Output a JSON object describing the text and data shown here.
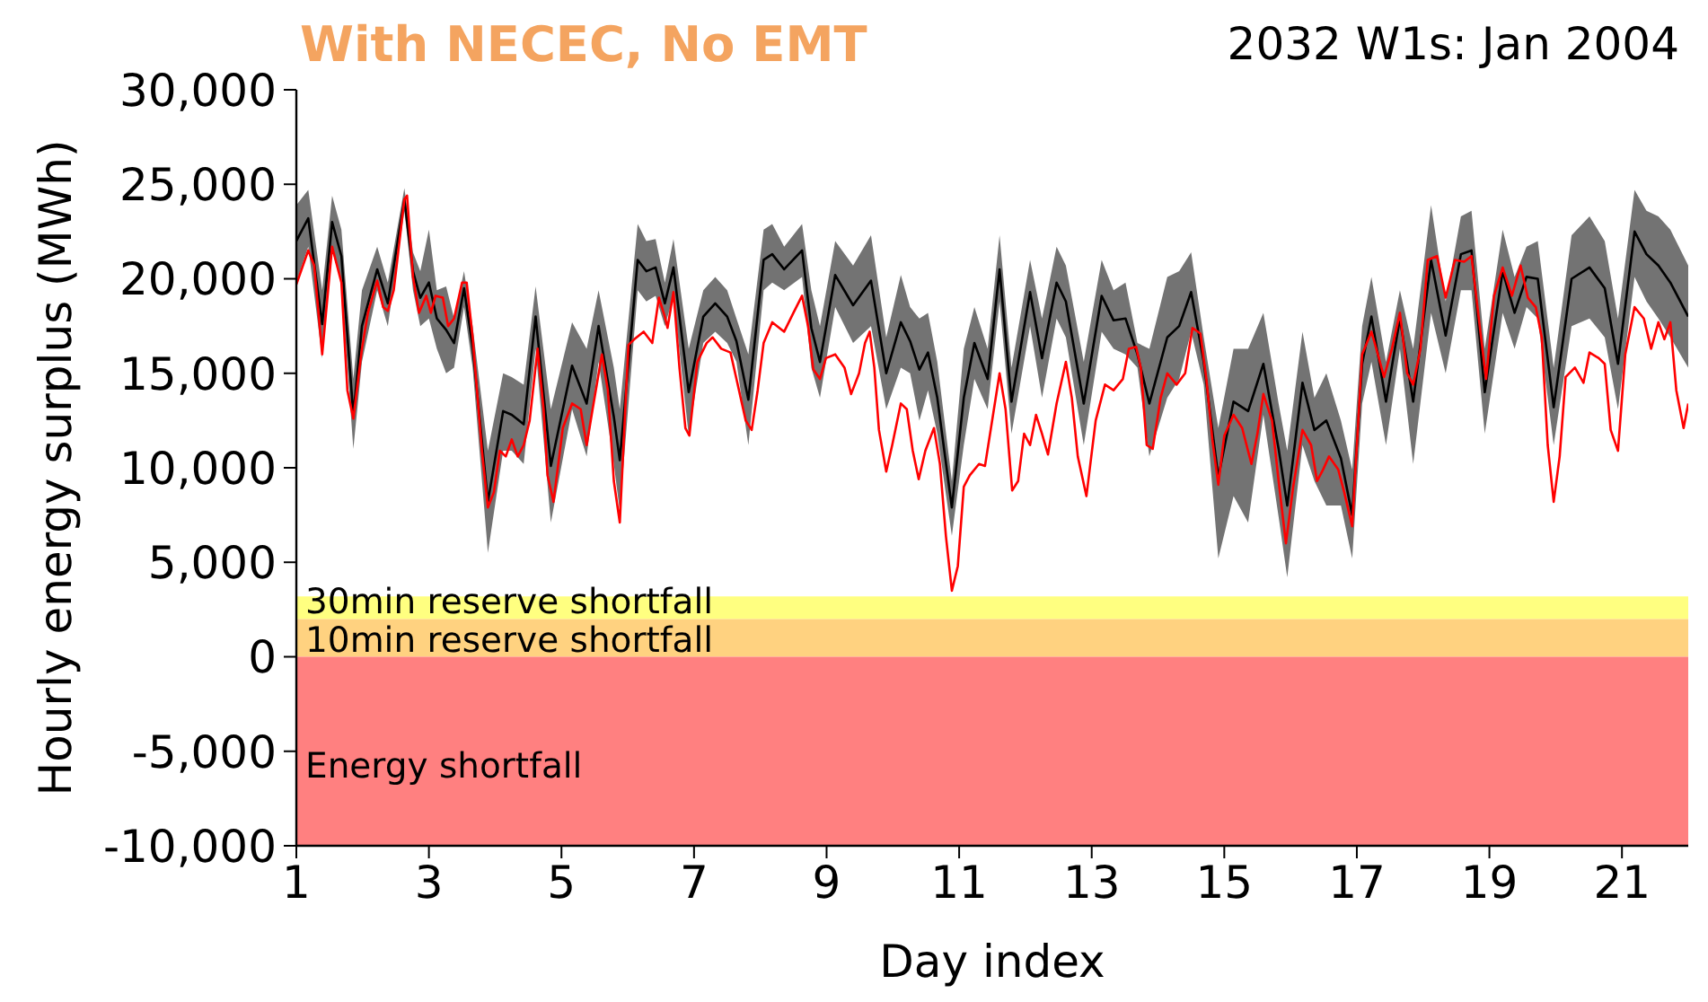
{
  "chart_data": {
    "type": "line",
    "title": "With NECEC, No EMT",
    "subtitle": "2032 W1s: Jan 2004",
    "xlabel": "Day index",
    "ylabel": "Hourly energy surplus (MWh)",
    "xlim": [
      1,
      22
    ],
    "xticks": [
      1,
      3,
      5,
      7,
      9,
      11,
      13,
      15,
      17,
      19,
      21
    ],
    "ylim": [
      -10000,
      30000
    ],
    "yticks": [
      {
        "value": -10000,
        "label": "-10,000"
      },
      {
        "value": -5000,
        "label": "-5,000"
      },
      {
        "value": 0,
        "label": "0"
      },
      {
        "value": 5000,
        "label": "5,000"
      },
      {
        "value": 10000,
        "label": "10,000"
      },
      {
        "value": 15000,
        "label": "15,000"
      },
      {
        "value": 20000,
        "label": "20,000"
      },
      {
        "value": 25000,
        "label": "25,000"
      },
      {
        "value": 30000,
        "label": "30,000"
      }
    ],
    "bands": [
      {
        "axis": "y",
        "from": 2000,
        "to": 3200,
        "label": "30min reserve shortfall",
        "color": "#ffff80"
      },
      {
        "axis": "y",
        "from": 0,
        "to": 2000,
        "label": "10min reserve shortfall",
        "color": "#ffd280"
      },
      {
        "axis": "y",
        "from": -10000,
        "to": 0,
        "label": "Energy shortfall",
        "color": "#ff8080"
      }
    ],
    "series": [
      {
        "color": "#000000",
        "x": [
          1.0,
          1.18,
          1.39,
          1.54,
          1.68,
          1.86,
          1.99,
          2.22,
          2.38,
          2.63,
          2.76,
          2.87,
          3.0,
          3.12,
          3.26,
          3.38,
          3.53,
          3.66,
          3.89,
          4.12,
          4.25,
          4.43,
          4.61,
          4.84,
          5.16,
          5.38,
          5.56,
          5.79,
          5.88,
          6.15,
          6.28,
          6.42,
          6.56,
          6.69,
          6.92,
          7.14,
          7.32,
          7.5,
          7.64,
          7.82,
          8.05,
          8.18,
          8.36,
          8.63,
          8.77,
          8.9,
          9.13,
          9.4,
          9.67,
          9.9,
          10.12,
          10.26,
          10.4,
          10.53,
          10.67,
          10.89,
          11.07,
          11.23,
          11.43,
          11.61,
          11.79,
          12.07,
          12.25,
          12.47,
          12.61,
          12.88,
          13.15,
          13.33,
          13.51,
          13.69,
          13.87,
          14.14,
          14.32,
          14.5,
          14.69,
          14.91,
          15.14,
          15.36,
          15.59,
          15.82,
          15.95,
          16.18,
          16.36,
          16.54,
          16.76,
          16.93,
          17.08,
          17.22,
          17.44,
          17.65,
          17.85,
          18.12,
          18.34,
          18.57,
          18.73,
          18.93,
          19.2,
          19.38,
          19.56,
          19.73,
          19.97,
          20.24,
          20.51,
          20.74,
          20.94,
          21.19,
          21.37,
          21.55,
          21.73,
          22.0
        ],
        "values": [
          22000,
          23200,
          17600,
          23000,
          21200,
          12800,
          17500,
          20500,
          18700,
          24200,
          20400,
          19000,
          19800,
          17900,
          17300,
          16600,
          19500,
          16400,
          8200,
          13000,
          12800,
          12300,
          18000,
          10100,
          15400,
          13400,
          17500,
          12700,
          10400,
          21000,
          20400,
          20600,
          18700,
          20600,
          14000,
          18000,
          18700,
          18000,
          16700,
          13600,
          21000,
          21300,
          20500,
          21500,
          17400,
          15600,
          20200,
          18600,
          19900,
          15000,
          17700,
          16700,
          15200,
          16100,
          13700,
          7900,
          13700,
          16600,
          14700,
          20500,
          13500,
          19300,
          15800,
          19800,
          18800,
          13400,
          19100,
          17800,
          17900,
          16000,
          13400,
          16900,
          17500,
          19300,
          15600,
          9500,
          13500,
          13000,
          15500,
          11000,
          8000,
          14500,
          12000,
          12500,
          10500,
          7500,
          15500,
          18000,
          13500,
          17900,
          13500,
          21000,
          17000,
          21300,
          21500,
          14000,
          20400,
          18200,
          20100,
          20000,
          13200,
          20000,
          20600,
          19500,
          15500,
          22500,
          21300,
          20700,
          19800,
          18000
        ],
        "lower": [
          19800,
          21700,
          15800,
          21500,
          19800,
          11000,
          15600,
          19400,
          17500,
          23600,
          19400,
          17500,
          17900,
          16300,
          15000,
          15300,
          18500,
          15300,
          5500,
          10900,
          10900,
          10200,
          16300,
          7100,
          13100,
          10600,
          15600,
          10200,
          7700,
          19400,
          18800,
          19100,
          17500,
          19100,
          11700,
          16600,
          17200,
          16600,
          15600,
          11200,
          19400,
          19800,
          19400,
          20100,
          15300,
          13700,
          18500,
          16600,
          17500,
          13100,
          15300,
          15000,
          12500,
          14100,
          11800,
          6400,
          11200,
          14700,
          13100,
          18800,
          11800,
          17500,
          13700,
          17900,
          16900,
          11200,
          17200,
          16300,
          16000,
          15300,
          10600,
          13700,
          14700,
          17200,
          14400,
          5200,
          8500,
          7100,
          12800,
          7400,
          4200,
          11200,
          9300,
          8000,
          8000,
          5200,
          13400,
          15600,
          11200,
          16300,
          10200,
          18200,
          15000,
          19400,
          19400,
          11800,
          18200,
          16300,
          18500,
          17900,
          11200,
          17500,
          17900,
          16900,
          13100,
          20100,
          18800,
          17900,
          16900,
          15300
        ],
        "upper": [
          23900,
          24700,
          19400,
          24400,
          22600,
          14700,
          19400,
          21700,
          19800,
          24800,
          21400,
          20400,
          22600,
          19400,
          19600,
          17900,
          20400,
          17500,
          10900,
          15000,
          14800,
          14400,
          19600,
          13100,
          17700,
          16300,
          19400,
          15300,
          13100,
          22900,
          22000,
          22100,
          19800,
          22100,
          16300,
          19400,
          20100,
          19400,
          17900,
          16000,
          22600,
          22900,
          21700,
          22900,
          19400,
          17500,
          22000,
          20700,
          22300,
          16900,
          20200,
          18500,
          17900,
          18200,
          15600,
          9300,
          16300,
          18500,
          16300,
          22300,
          15300,
          21000,
          17900,
          21700,
          20700,
          15600,
          21000,
          19400,
          19800,
          16600,
          16300,
          20100,
          20400,
          21400,
          16900,
          12100,
          16300,
          16300,
          18200,
          13400,
          10900,
          17200,
          13700,
          15000,
          12500,
          9900,
          17500,
          20100,
          15600,
          19400,
          16300,
          23900,
          18800,
          23300,
          23600,
          16300,
          22600,
          20100,
          21700,
          22000,
          15300,
          22300,
          23300,
          22000,
          17900,
          24700,
          23600,
          23300,
          22600,
          20700
        ]
      },
      {
        "color": "#ff0000",
        "x": [
          1.0,
          1.18,
          1.27,
          1.39,
          1.54,
          1.68,
          1.77,
          1.86,
          1.99,
          2.08,
          2.22,
          2.31,
          2.38,
          2.47,
          2.63,
          2.67,
          2.76,
          2.85,
          2.96,
          3.03,
          3.1,
          3.21,
          3.29,
          3.38,
          3.5,
          3.57,
          3.66,
          3.8,
          3.89,
          3.98,
          4.07,
          4.16,
          4.25,
          4.34,
          4.43,
          4.52,
          4.64,
          4.73,
          4.79,
          4.88,
          5.02,
          5.16,
          5.29,
          5.38,
          5.47,
          5.61,
          5.7,
          5.79,
          5.88,
          6.01,
          6.1,
          6.24,
          6.37,
          6.47,
          6.56,
          6.6,
          6.69,
          6.78,
          6.87,
          6.93,
          7.05,
          7.19,
          7.28,
          7.41,
          7.55,
          7.64,
          7.78,
          7.87,
          7.96,
          8.05,
          8.18,
          8.36,
          8.5,
          8.63,
          8.72,
          8.8,
          8.9,
          8.99,
          9.13,
          9.27,
          9.37,
          9.49,
          9.58,
          9.65,
          9.72,
          9.79,
          9.9,
          9.99,
          10.12,
          10.21,
          10.3,
          10.39,
          10.49,
          10.62,
          10.71,
          10.8,
          10.89,
          10.98,
          11.07,
          11.16,
          11.3,
          11.39,
          11.48,
          11.61,
          11.7,
          11.8,
          11.89,
          11.98,
          12.07,
          12.16,
          12.25,
          12.34,
          12.47,
          12.61,
          12.7,
          12.79,
          12.92,
          13.06,
          13.2,
          13.33,
          13.47,
          13.56,
          13.67,
          13.74,
          13.83,
          13.92,
          14.04,
          14.14,
          14.28,
          14.41,
          14.52,
          14.64,
          14.73,
          14.82,
          14.91,
          15.0,
          15.14,
          15.27,
          15.41,
          15.5,
          15.59,
          15.72,
          15.82,
          15.93,
          16.04,
          16.18,
          16.31,
          16.4,
          16.49,
          16.58,
          16.72,
          16.81,
          16.93,
          17.08,
          17.22,
          17.31,
          17.41,
          17.53,
          17.65,
          17.76,
          17.85,
          17.96,
          18.07,
          18.21,
          18.34,
          18.48,
          18.62,
          18.73,
          18.84,
          18.95,
          19.07,
          19.2,
          19.34,
          19.47,
          19.58,
          19.7,
          19.79,
          19.88,
          19.97,
          20.06,
          20.15,
          20.29,
          20.42,
          20.51,
          20.65,
          20.74,
          20.83,
          20.94,
          21.05,
          21.19,
          21.33,
          21.44,
          21.55,
          21.64,
          21.73,
          21.82,
          21.93,
          22.0
        ],
        "values": [
          19700,
          21500,
          20700,
          16000,
          21700,
          19800,
          14100,
          12600,
          16300,
          18200,
          19900,
          18500,
          18300,
          19400,
          24200,
          24400,
          20100,
          18200,
          19100,
          18200,
          19100,
          19000,
          17500,
          17900,
          19800,
          19800,
          16900,
          10900,
          7900,
          8700,
          10900,
          10600,
          11500,
          10600,
          11200,
          12500,
          16300,
          13100,
          9600,
          8200,
          12100,
          13400,
          13100,
          11200,
          13100,
          16000,
          14100,
          9300,
          7100,
          16500,
          16800,
          17200,
          16600,
          19000,
          18000,
          17400,
          19300,
          15300,
          12100,
          11700,
          15600,
          16600,
          16900,
          16300,
          16100,
          14700,
          12500,
          12000,
          14100,
          16600,
          17700,
          17200,
          18200,
          19100,
          17500,
          15200,
          14700,
          15800,
          16000,
          15300,
          13900,
          15000,
          16600,
          17200,
          15300,
          12000,
          9800,
          11200,
          13400,
          13100,
          10900,
          9400,
          10900,
          12100,
          10200,
          6400,
          3500,
          4800,
          9000,
          9600,
          10200,
          10100,
          12100,
          15000,
          13100,
          8800,
          9300,
          11800,
          11200,
          12800,
          11800,
          10700,
          13400,
          15600,
          13700,
          10600,
          8500,
          12500,
          14400,
          14100,
          14700,
          16300,
          16400,
          15300,
          11200,
          11000,
          13700,
          15000,
          14400,
          15000,
          17400,
          17100,
          14700,
          11500,
          9100,
          11700,
          12800,
          12100,
          10200,
          11800,
          13900,
          12500,
          9300,
          6000,
          9000,
          12000,
          11200,
          9300,
          9900,
          10600,
          9900,
          8700,
          6900,
          16000,
          17200,
          16100,
          14800,
          16300,
          18200,
          15000,
          14400,
          16300,
          21000,
          21200,
          19000,
          21000,
          20900,
          21200,
          17900,
          14700,
          19100,
          20600,
          19100,
          20700,
          19000,
          18500,
          16900,
          11200,
          8200,
          10600,
          14800,
          15300,
          14500,
          16100,
          15800,
          15500,
          12000,
          10900,
          16000,
          18500,
          17900,
          16300,
          17700,
          16800,
          17700,
          14100,
          12100,
          13400
        ]
      }
    ]
  }
}
